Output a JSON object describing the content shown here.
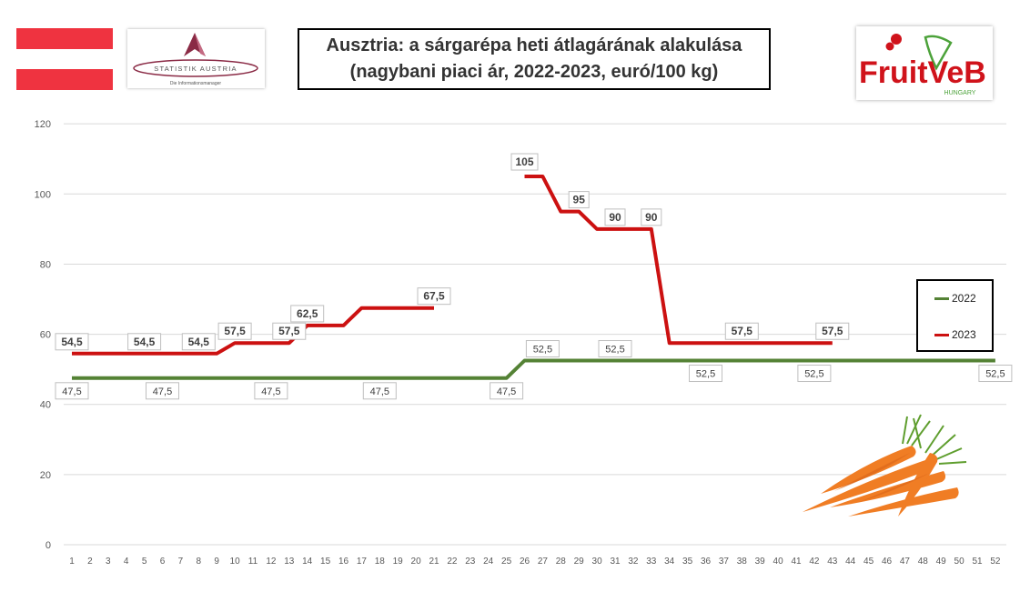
{
  "title": {
    "line1": "Ausztria: a sárgarépa heti átlagárának alakulása",
    "line2": "(nagybani piaci ár, 2022-2023, euró/100 kg)"
  },
  "logos": {
    "statistik_austria": "STATISTIK AUSTRIA",
    "statistik_tagline": "Die Informationsmanager",
    "fruitveb": "FruitVeB",
    "fruitveb_sub": "HUNGARY"
  },
  "colors": {
    "series_2022": "#548235",
    "series_2023": "#cc1111",
    "grid": "#d9d9d9",
    "flag_red": "#ef3340"
  },
  "chart_data": {
    "type": "line",
    "x": [
      1,
      2,
      3,
      4,
      5,
      6,
      7,
      8,
      9,
      10,
      11,
      12,
      13,
      14,
      15,
      16,
      17,
      18,
      19,
      20,
      21,
      22,
      23,
      24,
      25,
      26,
      27,
      28,
      29,
      30,
      31,
      32,
      33,
      34,
      35,
      36,
      37,
      38,
      39,
      40,
      41,
      42,
      43,
      44,
      45,
      46,
      47,
      48,
      49,
      50,
      51,
      52
    ],
    "ylim": [
      0,
      120
    ],
    "yticks": [
      0,
      20,
      40,
      60,
      80,
      100,
      120
    ],
    "grid": true,
    "legend": "right",
    "series": [
      {
        "name": "2022",
        "values": [
          47.5,
          47.5,
          47.5,
          47.5,
          47.5,
          47.5,
          47.5,
          47.5,
          47.5,
          47.5,
          47.5,
          47.5,
          47.5,
          47.5,
          47.5,
          47.5,
          47.5,
          47.5,
          47.5,
          47.5,
          47.5,
          47.5,
          47.5,
          47.5,
          47.5,
          52.5,
          52.5,
          52.5,
          52.5,
          52.5,
          52.5,
          52.5,
          52.5,
          52.5,
          52.5,
          52.5,
          52.5,
          52.5,
          52.5,
          52.5,
          52.5,
          52.5,
          52.5,
          52.5,
          52.5,
          52.5,
          52.5,
          52.5,
          52.5,
          52.5,
          52.5,
          52.5
        ],
        "labels": [
          {
            "x": 1,
            "text": "47,5",
            "pos": "below"
          },
          {
            "x": 6,
            "text": "47,5",
            "pos": "below"
          },
          {
            "x": 12,
            "text": "47,5",
            "pos": "below"
          },
          {
            "x": 18,
            "text": "47,5",
            "pos": "below"
          },
          {
            "x": 25,
            "text": "47,5",
            "pos": "below"
          },
          {
            "x": 27,
            "text": "52,5",
            "pos": "above"
          },
          {
            "x": 31,
            "text": "52,5",
            "pos": "above"
          },
          {
            "x": 36,
            "text": "52,5",
            "pos": "below"
          },
          {
            "x": 42,
            "text": "52,5",
            "pos": "below"
          },
          {
            "x": 52,
            "text": "52,5",
            "pos": "below"
          }
        ]
      },
      {
        "name": "2023",
        "values": [
          54.5,
          54.5,
          54.5,
          54.5,
          54.5,
          54.5,
          54.5,
          54.5,
          54.5,
          57.5,
          57.5,
          57.5,
          57.5,
          62.5,
          62.5,
          62.5,
          67.5,
          67.5,
          67.5,
          67.5,
          67.5,
          null,
          null,
          null,
          null,
          105,
          105,
          95,
          95,
          90,
          90,
          90,
          90,
          57.5,
          57.5,
          57.5,
          57.5,
          57.5,
          57.5,
          57.5,
          57.5,
          57.5,
          57.5,
          null,
          null,
          null,
          null,
          null,
          null,
          null,
          null,
          null
        ],
        "labels": [
          {
            "x": 1,
            "text": "54,5",
            "pos": "above"
          },
          {
            "x": 5,
            "text": "54,5",
            "pos": "above"
          },
          {
            "x": 8,
            "text": "54,5",
            "pos": "above"
          },
          {
            "x": 10,
            "text": "57,5",
            "pos": "above"
          },
          {
            "x": 13,
            "text": "57,5",
            "pos": "above"
          },
          {
            "x": 14,
            "text": "62,5",
            "pos": "above"
          },
          {
            "x": 21,
            "text": "67,5",
            "pos": "above"
          },
          {
            "x": 26,
            "text": "105",
            "pos": "above"
          },
          {
            "x": 29,
            "text": "95",
            "pos": "above"
          },
          {
            "x": 31,
            "text": "90",
            "pos": "above"
          },
          {
            "x": 33,
            "text": "90",
            "pos": "above"
          },
          {
            "x": 38,
            "text": "57,5",
            "pos": "above"
          },
          {
            "x": 43,
            "text": "57,5",
            "pos": "above"
          }
        ]
      }
    ]
  }
}
